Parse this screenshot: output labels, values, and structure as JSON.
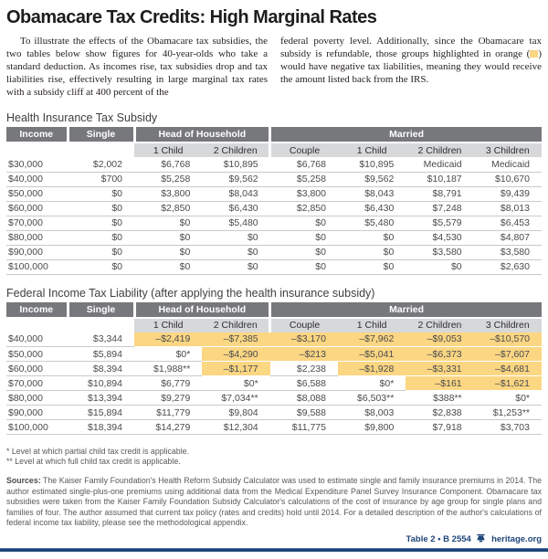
{
  "title": "Obamacare Tax Credits: High Marginal Rates",
  "intro": {
    "left": "To illustrate the effects of the Obamacare tax subsidies, the two tables below show figures for 40-year-olds who take a standard deduction. As incomes rise, tax subsidies drop and tax liabilities rise, effectively resulting in large marginal tax rates with a subsidy cliff at 400 percent of the",
    "right_before_swatch": "federal poverty level. Additionally, since the Obamacare tax subsidy is refundable, those groups highlighted in orange (",
    "right_after_swatch": ") would have negative tax liabilities, meaning they would receive the amount listed back from the IRS."
  },
  "colors": {
    "hdr": "#77787b",
    "sub": "#d7d8da",
    "orange": "#fbd683",
    "navy": "#1c4478"
  },
  "tables": [
    {
      "title": "Health Insurance Tax Subsidy",
      "col_income": "Income",
      "col_single": "Single",
      "group_hoh": "Head of Household",
      "group_married": "Married",
      "subcols": [
        "1 Child",
        "2 Children",
        "Couple",
        "1 Child",
        "2 Children",
        "3 Children"
      ],
      "rows": [
        {
          "income": "$30,000",
          "values": [
            "$2,002",
            "$6,768",
            "$10,895",
            "$6,768",
            "$10,895",
            "Medicaid",
            "Medicaid"
          ]
        },
        {
          "income": "$40,000",
          "values": [
            "$700",
            "$5,258",
            "$9,562",
            "$5,258",
            "$9,562",
            "$10,187",
            "$10,670"
          ]
        },
        {
          "income": "$50,000",
          "values": [
            "$0",
            "$3,800",
            "$8,043",
            "$3,800",
            "$8,043",
            "$8,791",
            "$9,439"
          ]
        },
        {
          "income": "$60,000",
          "values": [
            "$0",
            "$2,850",
            "$6,430",
            "$2,850",
            "$6,430",
            "$7,248",
            "$8,013"
          ]
        },
        {
          "income": "$70,000",
          "values": [
            "$0",
            "$0",
            "$5,480",
            "$0",
            "$5,480",
            "$5,579",
            "$6,453"
          ]
        },
        {
          "income": "$80,000",
          "values": [
            "$0",
            "$0",
            "$0",
            "$0",
            "$0",
            "$4,530",
            "$4,807"
          ]
        },
        {
          "income": "$90,000",
          "values": [
            "$0",
            "$0",
            "$0",
            "$0",
            "$0",
            "$3,580",
            "$3,580"
          ]
        },
        {
          "income": "$100,000",
          "values": [
            "$0",
            "$0",
            "$0",
            "$0",
            "$0",
            "$0",
            "$2,630"
          ]
        }
      ]
    },
    {
      "title": "Federal Income Tax Liability (after applying the health insurance subsidy)",
      "col_income": "Income",
      "col_single": "Single",
      "group_hoh": "Head of Household",
      "group_married": "Married",
      "subcols": [
        "1 Child",
        "2 Children",
        "Couple",
        "1 Child",
        "2 Children",
        "3 Children"
      ],
      "rows": [
        {
          "income": "$40,000",
          "values": [
            "$3,344",
            "–$2,419",
            "–$7,385",
            "–$3,170",
            "–$7,962",
            "–$9,053",
            "–$10,570"
          ],
          "highlights": [
            false,
            true,
            true,
            true,
            true,
            true,
            true
          ]
        },
        {
          "income": "$50,000",
          "values": [
            "$5,894",
            "$0*",
            "–$4,290",
            "–$213",
            "–$5,041",
            "–$6,373",
            "–$7,607"
          ],
          "highlights": [
            false,
            false,
            true,
            true,
            true,
            true,
            true
          ]
        },
        {
          "income": "$60,000",
          "values": [
            "$8,394",
            "$1,988**",
            "–$1,177",
            "$2,238",
            "–$1,928",
            "–$3,331",
            "–$4,681"
          ],
          "highlights": [
            false,
            false,
            true,
            false,
            true,
            true,
            true
          ]
        },
        {
          "income": "$70,000",
          "values": [
            "$10,894",
            "$6,779",
            "$0*",
            "$6,588",
            "$0*",
            "–$161",
            "–$1,621"
          ],
          "highlights": [
            false,
            false,
            false,
            false,
            false,
            true,
            true
          ]
        },
        {
          "income": "$80,000",
          "values": [
            "$13,394",
            "$9,279",
            "$7,034**",
            "$8,088",
            "$6,503**",
            "$388**",
            "$0*"
          ],
          "highlights": [
            false,
            false,
            false,
            false,
            false,
            false,
            false
          ]
        },
        {
          "income": "$90,000",
          "values": [
            "$15,894",
            "$11,779",
            "$9,804",
            "$9,588",
            "$8,003",
            "$2,838",
            "$1,253**"
          ],
          "highlights": [
            false,
            false,
            false,
            false,
            false,
            false,
            false
          ]
        },
        {
          "income": "$100,000",
          "values": [
            "$18,394",
            "$14,279",
            "$12,304",
            "$11,775",
            "$9,800",
            "$7,918",
            "$3,703"
          ],
          "highlights": [
            false,
            false,
            false,
            false,
            false,
            false,
            false
          ]
        }
      ]
    }
  ],
  "footnotes": [
    "* Level at which partial child tax credit is applicable.",
    "** Level at which full child tax credit is applicable."
  ],
  "sources_label": "Sources:",
  "sources_text": " The Kaiser Family Foundation's Health Reform Subsidy Calculator was used to estimate single and family insurance premiums in 2014. The author estimated single-plus-one premiums using additional data from the Medical Expenditure Panel Survey Insurance Component. Obamacare tax subsidies were taken from the Kaiser Family Foundation Subsidy Calculator's calculations of the cost of insurance by age group for single plans and families of four. The author assumed that current tax policy (rates and credits) hold until 2014. For a detailed description of the author's calculations of federal income tax liability, please see the methodological appendix.",
  "footer": {
    "label": "Table 2 • B 2554",
    "site": "heritage.org"
  }
}
